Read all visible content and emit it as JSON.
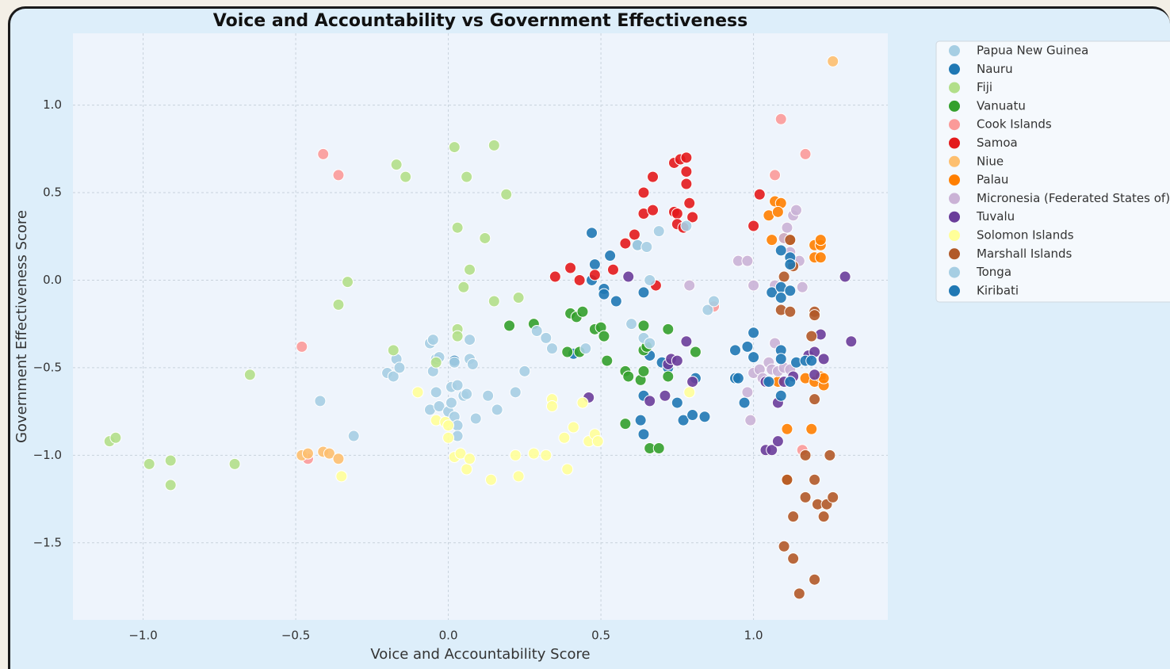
{
  "chart_data": {
    "type": "scatter",
    "title": "Voice and Accountability vs Government Effectiveness",
    "xlabel": "Voice and Accountability Score",
    "ylabel": "Government Effectiveness Score",
    "xlim": [
      -1.23,
      1.44
    ],
    "ylim": [
      -1.94,
      1.41
    ],
    "xticks": [
      {
        "value": -1.0,
        "label": "−1.0"
      },
      {
        "value": -0.5,
        "label": "−0.5"
      },
      {
        "value": 0,
        "label": "0.0"
      },
      0.5,
      {
        "value": 1,
        "label": "1.0"
      }
    ],
    "yticks": [
      {
        "value": 1,
        "label": "1.0"
      },
      0.5,
      {
        "value": 0,
        "label": "0.0"
      },
      {
        "value": -0.5,
        "label": "−0.5"
      },
      {
        "value": -1,
        "label": "−1.0"
      },
      {
        "value": -1.5,
        "label": "−1.5"
      }
    ],
    "grid": true,
    "legend": "outside-upper-right",
    "series": [
      {
        "name": "Papua New Guinea",
        "color": "#a6cee3",
        "x": [
          -0.42,
          -0.31,
          -0.2,
          -0.18,
          -0.17,
          -0.16,
          -0.06,
          -0.05,
          -0.04,
          -0.05,
          -0.03,
          -0.04,
          -0.06,
          -0.03,
          0.0,
          0.01,
          0.01,
          0.03,
          0.02,
          0.03,
          0.03,
          0.05,
          0.06
        ],
        "y": [
          -0.69,
          -0.89,
          -0.53,
          -0.55,
          -0.45,
          -0.5,
          -0.36,
          -0.34,
          -0.45,
          -0.52,
          -0.44,
          -0.64,
          -0.74,
          -0.72,
          -0.75,
          -0.7,
          -0.61,
          -0.6,
          -0.78,
          -0.83,
          -0.89,
          -0.66,
          -0.65
        ]
      },
      {
        "name": "Nauru",
        "color": "#1f78b4",
        "x": [
          0.47,
          0.48,
          0.53,
          0.51,
          0.51,
          0.55,
          0.47,
          0.41,
          0.02,
          0.62,
          0.64,
          0.63,
          0.64,
          0.64,
          0.7,
          0.75,
          0.77,
          0.8,
          0.84,
          0.81,
          0.66,
          0.72
        ],
        "y": [
          0.27,
          0.09,
          0.14,
          -0.05,
          -0.08,
          -0.12,
          0.0,
          -0.42,
          -0.46,
          0.2,
          -0.07,
          -0.8,
          -0.88,
          -0.66,
          -0.47,
          -0.7,
          -0.8,
          -0.77,
          -0.78,
          -0.56,
          -0.43,
          -0.5
        ]
      },
      {
        "name": "Fiji",
        "color": "#b2df8a",
        "x": [
          -1.11,
          -1.09,
          -0.98,
          -0.91,
          -0.91,
          -0.7,
          -0.65,
          -0.36,
          -0.33,
          -0.18,
          -0.17,
          -0.14,
          -0.04,
          0.02,
          0.03,
          0.03,
          0.03,
          0.06,
          0.05,
          0.07,
          0.12,
          0.15,
          0.15,
          0.19,
          0.23
        ],
        "y": [
          -0.92,
          -0.9,
          -1.05,
          -1.03,
          -1.17,
          -1.05,
          -0.54,
          -0.14,
          -0.01,
          -0.4,
          0.66,
          0.59,
          -0.47,
          0.76,
          0.3,
          -0.28,
          -0.32,
          0.59,
          -0.04,
          0.06,
          0.24,
          0.77,
          -0.12,
          0.49,
          -0.1
        ]
      },
      {
        "name": "Vanuatu",
        "color": "#33a02c",
        "x": [
          0.2,
          0.28,
          0.39,
          0.4,
          0.42,
          0.43,
          0.44,
          0.48,
          0.5,
          0.51,
          0.52,
          0.58,
          0.58,
          0.59,
          0.63,
          0.64,
          0.64,
          0.65,
          0.64,
          0.66,
          0.69,
          0.72,
          0.72,
          0.81
        ],
        "y": [
          -0.26,
          -0.25,
          -0.41,
          -0.19,
          -0.21,
          -0.41,
          -0.18,
          -0.28,
          -0.27,
          -0.32,
          -0.46,
          -0.82,
          -0.52,
          -0.55,
          -0.57,
          -0.4,
          -0.26,
          -0.38,
          -0.52,
          -0.96,
          -0.96,
          -0.28,
          -0.55,
          -0.41
        ]
      },
      {
        "name": "Cook Islands",
        "color": "#fb9a99",
        "x": [
          -0.41,
          -0.36,
          -0.48,
          -0.46,
          0.87,
          1.07,
          1.09,
          1.17,
          1.16
        ],
        "y": [
          0.72,
          0.6,
          -0.38,
          -1.02,
          -0.15,
          0.6,
          0.92,
          0.72,
          -0.97
        ]
      },
      {
        "name": "Samoa",
        "color": "#e31a1c",
        "x": [
          0.35,
          0.4,
          0.43,
          0.48,
          0.54,
          0.58,
          0.61,
          0.64,
          0.64,
          0.67,
          0.67,
          0.68,
          0.74,
          0.76,
          0.78,
          0.78,
          0.78,
          0.79,
          0.8,
          0.74,
          0.75,
          0.75,
          0.77,
          1.0,
          1.02
        ],
        "y": [
          0.02,
          0.07,
          0.0,
          0.03,
          0.06,
          0.21,
          0.26,
          0.38,
          0.5,
          0.4,
          0.59,
          -0.03,
          0.67,
          0.69,
          0.7,
          0.62,
          0.55,
          0.44,
          0.36,
          0.39,
          0.38,
          0.32,
          0.3,
          0.31,
          0.49
        ]
      },
      {
        "name": "Niue",
        "color": "#fdbf6f",
        "x": [
          1.26,
          -0.48,
          -0.46,
          -0.41,
          -0.39,
          -0.36
        ],
        "y": [
          1.25,
          -1.0,
          -0.99,
          -0.98,
          -0.99,
          -1.02
        ]
      },
      {
        "name": "Palau",
        "color": "#ff7f00",
        "x": [
          1.05,
          1.06,
          1.07,
          1.09,
          1.08,
          1.1,
          1.12,
          1.2,
          1.22,
          1.22,
          1.2,
          1.22,
          1.17,
          1.2,
          1.22,
          1.23,
          1.23,
          1.08,
          1.11,
          1.19,
          1.11
        ],
        "y": [
          0.37,
          0.23,
          0.45,
          0.44,
          0.39,
          0.24,
          0.23,
          0.2,
          0.2,
          0.23,
          0.13,
          0.13,
          -0.56,
          -0.58,
          -0.55,
          -0.6,
          -0.56,
          -0.58,
          -0.85,
          -0.85,
          -1.14
        ]
      },
      {
        "name": "Micronesia (Federated States of)",
        "color": "#cab2d6",
        "x": [
          0.79,
          0.95,
          0.98,
          1.0,
          1.0,
          0.99,
          0.98,
          1.02,
          1.03,
          1.05,
          1.06,
          1.07,
          1.07,
          1.1,
          1.11,
          1.12,
          1.13,
          1.14,
          1.13,
          1.15,
          1.16,
          1.08,
          1.1,
          1.12
        ],
        "y": [
          -0.03,
          0.11,
          0.11,
          -0.03,
          -0.53,
          -0.8,
          -0.64,
          -0.51,
          -0.56,
          -0.47,
          -0.51,
          -0.36,
          -0.03,
          0.24,
          0.3,
          0.16,
          0.37,
          0.4,
          0.1,
          0.11,
          -0.04,
          -0.52,
          -0.5,
          -0.51
        ]
      },
      {
        "name": "Tuvalu",
        "color": "#6a3d9a",
        "x": [
          0.46,
          0.59,
          0.66,
          0.71,
          0.72,
          0.73,
          0.75,
          0.78,
          0.8,
          1.04,
          1.04,
          1.06,
          1.08,
          1.08,
          1.1,
          1.13,
          1.18,
          1.2,
          1.22,
          1.23,
          1.2,
          1.3,
          1.32
        ],
        "y": [
          -0.67,
          0.02,
          -0.69,
          -0.66,
          -0.48,
          -0.45,
          -0.46,
          -0.35,
          -0.58,
          -0.58,
          -0.97,
          -0.97,
          -0.92,
          -0.7,
          -0.58,
          -0.55,
          -0.43,
          -0.41,
          -0.31,
          -0.45,
          -0.54,
          0.02,
          -0.35
        ]
      },
      {
        "name": "Solomon Islands",
        "color": "#ffff99",
        "x": [
          -0.35,
          -0.1,
          -0.04,
          -0.01,
          0.0,
          0.0,
          0.02,
          0.04,
          0.06,
          0.07,
          0.14,
          0.22,
          0.23,
          0.28,
          0.32,
          0.34,
          0.34,
          0.38,
          0.39,
          0.41,
          0.44,
          0.46,
          0.48,
          0.49,
          0.79
        ],
        "y": [
          -1.12,
          -0.64,
          -0.8,
          -0.81,
          -0.83,
          -0.9,
          -1.01,
          -0.99,
          -1.08,
          -1.02,
          -1.14,
          -1.0,
          -1.12,
          -0.99,
          -1.0,
          -0.68,
          -0.72,
          -0.9,
          -1.08,
          -0.84,
          -0.7,
          -0.92,
          -0.88,
          -0.92,
          -0.64
        ]
      },
      {
        "name": "Marshall Islands",
        "color": "#b15928",
        "x": [
          1.1,
          1.12,
          1.13,
          1.09,
          1.12,
          1.2,
          1.2,
          1.19,
          1.2,
          1.2,
          1.17,
          1.25,
          1.17,
          1.21,
          1.24,
          1.26,
          1.23,
          1.13,
          1.11,
          1.1,
          1.13,
          1.15,
          1.2
        ],
        "y": [
          0.02,
          0.23,
          0.08,
          -0.17,
          -0.18,
          -0.18,
          -0.2,
          -0.32,
          -0.68,
          -1.14,
          -1.0,
          -1.0,
          -1.24,
          -1.28,
          -1.28,
          -1.24,
          -1.35,
          -1.35,
          -1.14,
          -1.52,
          -1.59,
          -1.79,
          -1.71
        ]
      },
      {
        "name": "Tonga",
        "color": "#a6cee3",
        "x": [
          0.07,
          0.08,
          0.09,
          0.13,
          0.16,
          0.22,
          0.25,
          0.29,
          0.32,
          0.34,
          0.45,
          0.6,
          0.62,
          0.65,
          0.66,
          0.69,
          0.78,
          0.64,
          0.66,
          0.85,
          0.87,
          0.02,
          0.07
        ],
        "y": [
          -0.45,
          -0.48,
          -0.79,
          -0.66,
          -0.74,
          -0.64,
          -0.52,
          -0.29,
          -0.33,
          -0.39,
          -0.39,
          -0.25,
          0.2,
          0.19,
          0.0,
          0.28,
          0.31,
          -0.33,
          -0.36,
          -0.17,
          -0.12,
          -0.47,
          -0.34
        ]
      },
      {
        "name": "Kiribati",
        "color": "#1f78b4",
        "x": [
          0.94,
          0.94,
          0.97,
          0.98,
          1.0,
          1.0,
          1.06,
          1.09,
          1.09,
          1.09,
          1.12,
          1.12,
          1.12,
          1.09,
          1.09,
          1.09,
          1.12,
          1.14,
          1.17,
          1.19,
          0.95,
          1.05
        ],
        "y": [
          -0.4,
          -0.56,
          -0.7,
          -0.38,
          -0.3,
          -0.44,
          -0.07,
          -0.04,
          -0.1,
          0.17,
          0.13,
          0.09,
          -0.06,
          -0.4,
          -0.45,
          -0.66,
          -0.58,
          -0.47,
          -0.46,
          -0.46,
          -0.56,
          -0.58
        ]
      }
    ]
  }
}
